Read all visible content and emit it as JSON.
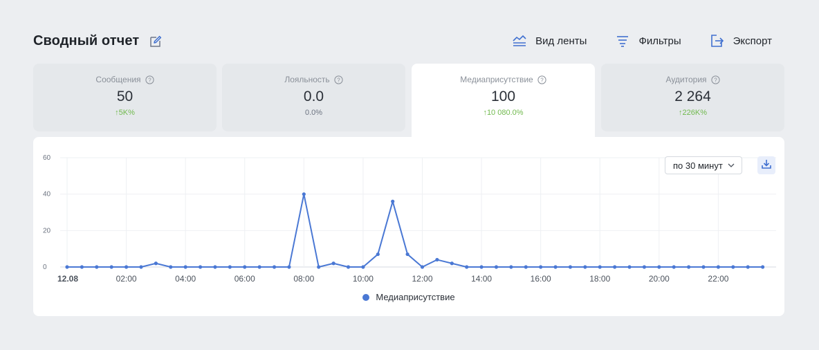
{
  "header": {
    "title": "Сводный отчет",
    "toolbar": [
      {
        "label": "Вид ленты",
        "icon": "feed-view-icon"
      },
      {
        "label": "Фильтры",
        "icon": "filter-icon"
      },
      {
        "label": "Экспорт",
        "icon": "export-icon"
      }
    ]
  },
  "cards": [
    {
      "label": "Сообщения",
      "value": "50",
      "delta": "↑5K%",
      "trend": "up",
      "active": false
    },
    {
      "label": "Лояльность",
      "value": "0.0",
      "delta": "0.0%",
      "trend": "none",
      "active": false
    },
    {
      "label": "Медиаприсутствие",
      "value": "100",
      "delta": "↑10 080.0%",
      "trend": "up",
      "active": true
    },
    {
      "label": "Аудитория",
      "value": "2 264",
      "delta": "↑226K%",
      "trend": "up",
      "active": false
    }
  ],
  "controls": {
    "interval": "по 30 минут",
    "download_icon": "download-icon"
  },
  "colors": {
    "accent": "#4a78d4",
    "positive": "#70b94d",
    "card_bg": "#e5e8eb",
    "page_bg": "#eceef1"
  },
  "chart_data": {
    "type": "line",
    "x_start_label": "12.08",
    "x_tick_labels": [
      "02:00",
      "04:00",
      "06:00",
      "08:00",
      "10:00",
      "12:00",
      "14:00",
      "16:00",
      "18:00",
      "20:00",
      "22:00"
    ],
    "ylim": [
      0,
      60
    ],
    "y_ticks": [
      0,
      20,
      40,
      60
    ],
    "grid": true,
    "legend_position": "bottom",
    "series": [
      {
        "name": "Медиаприсутствие",
        "x": [
          "00:00",
          "00:30",
          "01:00",
          "01:30",
          "02:00",
          "02:30",
          "03:00",
          "03:30",
          "04:00",
          "04:30",
          "05:00",
          "05:30",
          "06:00",
          "06:30",
          "07:00",
          "07:30",
          "08:00",
          "08:30",
          "09:00",
          "09:30",
          "10:00",
          "10:30",
          "11:00",
          "11:30",
          "12:00",
          "12:30",
          "13:00",
          "13:30",
          "14:00",
          "14:30",
          "15:00",
          "15:30",
          "16:00",
          "16:30",
          "17:00",
          "17:30",
          "18:00",
          "18:30",
          "19:00",
          "19:30",
          "20:00",
          "20:30",
          "21:00",
          "21:30",
          "22:00",
          "22:30",
          "23:00",
          "23:30"
        ],
        "values": [
          0,
          0,
          0,
          0,
          0,
          0,
          2,
          0,
          0,
          0,
          0,
          0,
          0,
          0,
          0,
          0,
          40,
          0,
          2,
          0,
          0,
          7,
          36,
          7,
          0,
          4,
          2,
          0,
          0,
          0,
          0,
          0,
          0,
          0,
          0,
          0,
          0,
          0,
          0,
          0,
          0,
          0,
          0,
          0,
          0,
          0,
          0,
          0
        ]
      }
    ]
  }
}
